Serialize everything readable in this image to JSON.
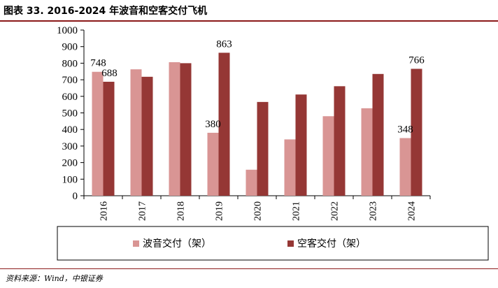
{
  "title": "图表 33. 2016-2024 年波音和空客交付飞机",
  "source": "资料来源：Wind，中银证券",
  "colors": {
    "boeing": "#d99594",
    "airbus": "#953735",
    "rule": "#8b1a1a"
  },
  "chart_data": {
    "type": "bar",
    "categories": [
      "2016",
      "2017",
      "2018",
      "2019",
      "2020",
      "2021",
      "2022",
      "2023",
      "2024"
    ],
    "series": [
      {
        "name": "波音交付（架）",
        "values": [
          748,
          763,
          806,
          380,
          157,
          340,
          480,
          528,
          348
        ]
      },
      {
        "name": "空客交付（架）",
        "values": [
          688,
          718,
          800,
          863,
          566,
          611,
          661,
          735,
          766
        ]
      }
    ],
    "data_labels": [
      {
        "series": 0,
        "index": 0,
        "text": "748"
      },
      {
        "series": 1,
        "index": 0,
        "text": "688"
      },
      {
        "series": 1,
        "index": 3,
        "text": "863"
      },
      {
        "series": 0,
        "index": 3,
        "text": "380"
      },
      {
        "series": 0,
        "index": 8,
        "text": "348"
      },
      {
        "series": 1,
        "index": 8,
        "text": "766"
      }
    ],
    "yticks": [
      "0",
      "100",
      "200",
      "300",
      "400",
      "500",
      "600",
      "700",
      "800",
      "900",
      "1000"
    ],
    "ylim": [
      0,
      1000
    ],
    "legend_position": "bottom",
    "grid": false
  }
}
